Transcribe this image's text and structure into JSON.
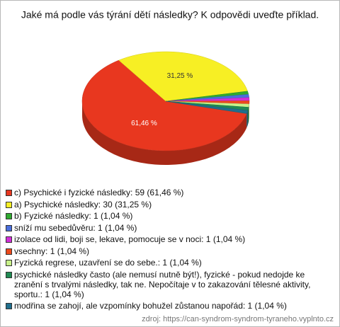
{
  "chart_data": {
    "type": "pie",
    "title": "Jaké má podle vás týrání dětí následky? K odpovědi uveďte příklad.",
    "categories": [
      "c) Psychické i fyzické následky: 59 (61,46 %)",
      "a) Psychické následky: 30 (31,25 %)",
      "b) Fyzické následky: 1 (1,04 %)",
      "sníží mu sebedůvěru: 1 (1,04 %)",
      "izolace od lidi, boji se, lekave, pomocuje se v noci: 1 (1,04 %)",
      "vsechny: 1 (1,04 %)",
      "Fyzická regrese, uzavření se do sebe.: 1 (1,04 %)",
      "psychické následky často (ale nemusí nutně být!), fyzické - pokud nedojde ke zranění s trvalými následky, tak ne. Nepočítaje v to zakazování tělesné aktivity, sportu.: 1 (1,04 %)",
      "modřina se zahojí, ale vzpomínky bohužel zůstanou napořád: 1 (1,04 %)"
    ],
    "values": [
      61.46,
      31.25,
      1.04,
      1.04,
      1.04,
      1.04,
      1.04,
      1.04,
      1.04
    ],
    "value_labels": [
      "61,46 %",
      "31,25 %",
      null,
      null,
      null,
      null,
      null,
      null,
      null
    ],
    "colors": [
      "#e8371f",
      "#f7ef24",
      "#2faa2f",
      "#4a6fdc",
      "#d22fd8",
      "#ec4a1c",
      "#c8f28a",
      "#1f8a52",
      "#1f6e8c"
    ],
    "source": "zdroj: https://can-syndrom-syndrom-tyraneho.vyplnto.cz"
  }
}
